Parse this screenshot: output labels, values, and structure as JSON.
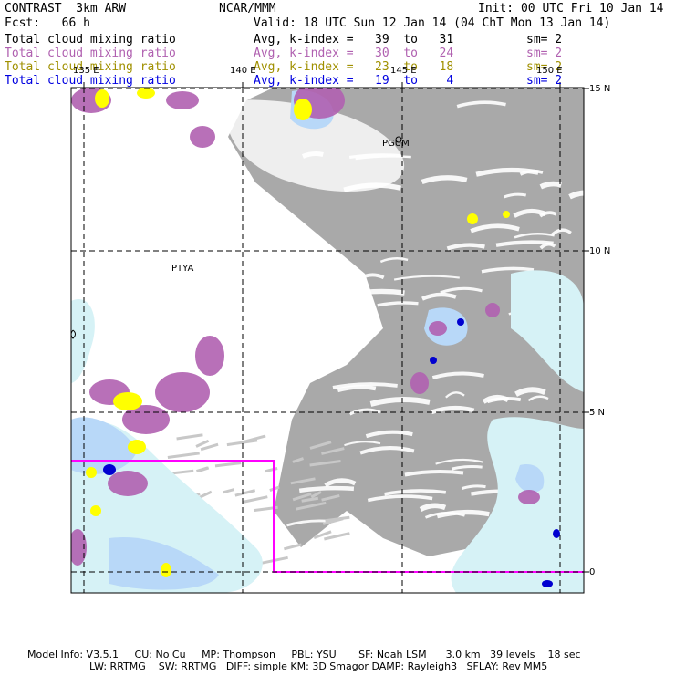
{
  "header": {
    "title_left": "CONTRAST  3km ARW",
    "title_center": "NCAR/MMM",
    "init": "Init: 00 UTC Fri 10 Jan 14",
    "fcst_label": "Fcst:   66 h",
    "valid": "Valid: 18 UTC Sun 12 Jan 14 (04 ChT Mon 13 Jan 14)"
  },
  "fields": [
    {
      "name": "Total cloud mixing ratio",
      "avg": "Avg, k-index =   39  to   31",
      "sm": "sm= 2",
      "color": "#000000"
    },
    {
      "name": "Total cloud mixing ratio",
      "avg": "Avg, k-index =   30  to   24",
      "sm": "sm= 2",
      "color": "#b060b0"
    },
    {
      "name": "Total cloud mixing ratio",
      "avg": "Avg, k-index =   23  to   18",
      "sm": "sm= 2",
      "color": "#a09000"
    },
    {
      "name": "Total cloud mixing ratio",
      "avg": "Avg, k-index =   19  to    4",
      "sm": "sm= 2",
      "color": "#0000e0"
    }
  ],
  "map": {
    "lon_labels": [
      "135 E",
      "140 E",
      "145 E",
      "150 E"
    ],
    "lat_labels": [
      "15 N",
      "10 N",
      "5 N",
      "0"
    ],
    "stations": [
      "PGUM",
      "PTYA"
    ],
    "colors": {
      "cloud_gray": "#9a9a9a",
      "cloud_light": "#c8c8c8",
      "ice_light": "#d6f2f6",
      "ice_blue": "#b8d8f8",
      "purple": "#b060b0",
      "yellow": "#ffff00",
      "dark_blue": "#0000d0",
      "box": "#ff00ff"
    }
  },
  "footer": {
    "line1": "Model Info: V3.5.1     CU: No Cu     MP: Thompson     PBL: YSU       SF: Noah LSM      3.0 km   39 levels    18 sec",
    "line2": "LW: RRTMG    SW: RRTMG   DIFF: simple KM: 3D Smagor DAMP: Rayleigh3   SFLAY: Rev MM5"
  }
}
